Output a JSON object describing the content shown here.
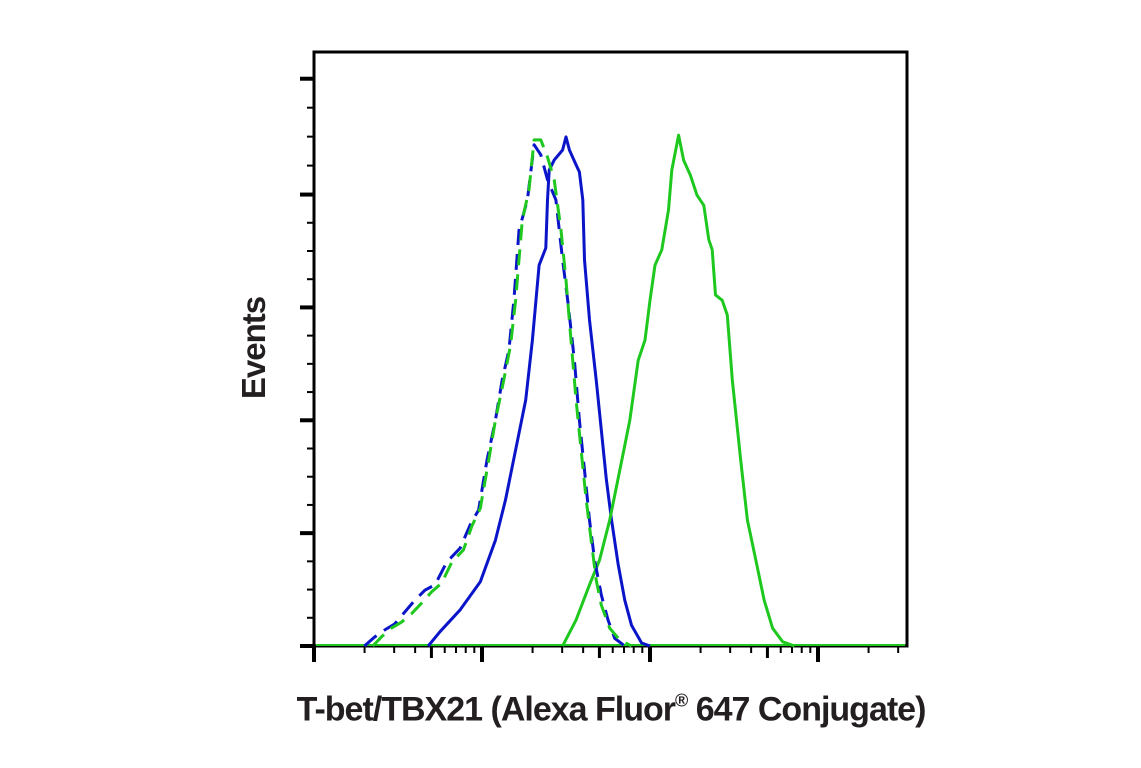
{
  "chart_data": {
    "type": "line",
    "title": "",
    "xlabel": "T-bet/TBX21 (Alexa Fluor® 647 Conjugate)",
    "xlabel_parts": {
      "main": "T-bet/TBX21 (Alexa Fluor",
      "sup": "®",
      "rest": " 647 Conjugate)"
    },
    "ylabel": "Events",
    "x_scale": "log",
    "x_unit": "decades from axis origin",
    "x_range": [
      0,
      3.53
    ],
    "x_major_ticks": [
      0,
      1,
      2,
      3
    ],
    "y_unit": "percent of axis height",
    "ylim": [
      0,
      100
    ],
    "y_major_ticks": [
      0,
      19,
      38,
      57,
      76,
      95.5
    ],
    "y_tick_labels": [],
    "x_tick_labels": [],
    "grid": false,
    "legend": null,
    "series": [
      {
        "name": "blue-solid",
        "color": "#0a14c8",
        "dash": false,
        "points": [
          [
            0.68,
            0
          ],
          [
            0.75,
            2.4
          ],
          [
            0.87,
            6.1
          ],
          [
            0.99,
            10.8
          ],
          [
            1.08,
            17.8
          ],
          [
            1.14,
            24.6
          ],
          [
            1.2,
            33.0
          ],
          [
            1.26,
            41.4
          ],
          [
            1.3,
            51.5
          ],
          [
            1.34,
            64.1
          ],
          [
            1.38,
            67.0
          ],
          [
            1.39,
            75.1
          ],
          [
            1.4,
            80.1
          ],
          [
            1.43,
            81.8
          ],
          [
            1.48,
            83.5
          ],
          [
            1.5,
            85.7
          ],
          [
            1.52,
            83.5
          ],
          [
            1.56,
            81.0
          ],
          [
            1.58,
            79.8
          ],
          [
            1.6,
            75.1
          ],
          [
            1.61,
            65.0
          ],
          [
            1.64,
            54.9
          ],
          [
            1.68,
            44.8
          ],
          [
            1.71,
            36.4
          ],
          [
            1.74,
            28.1
          ],
          [
            1.77,
            21.4
          ],
          [
            1.81,
            13.8
          ],
          [
            1.85,
            7.7
          ],
          [
            1.89,
            3.5
          ],
          [
            1.95,
            0.5
          ],
          [
            2.0,
            0
          ]
        ]
      },
      {
        "name": "green-solid",
        "color": "#1ec81e",
        "dash": false,
        "points": [
          [
            1.48,
            0
          ],
          [
            1.56,
            4.4
          ],
          [
            1.64,
            10.3
          ],
          [
            1.7,
            14.5
          ],
          [
            1.76,
            21.2
          ],
          [
            1.82,
            29.6
          ],
          [
            1.88,
            38.0
          ],
          [
            1.93,
            48.1
          ],
          [
            1.97,
            51.5
          ],
          [
            2.0,
            58.2
          ],
          [
            2.03,
            64.1
          ],
          [
            2.07,
            66.7
          ],
          [
            2.11,
            73.4
          ],
          [
            2.13,
            80.1
          ],
          [
            2.17,
            86.0
          ],
          [
            2.2,
            81.8
          ],
          [
            2.24,
            79.3
          ],
          [
            2.28,
            75.9
          ],
          [
            2.32,
            74.2
          ],
          [
            2.35,
            68.4
          ],
          [
            2.37,
            66.7
          ],
          [
            2.39,
            59.1
          ],
          [
            2.43,
            58.2
          ],
          [
            2.46,
            55.7
          ],
          [
            2.49,
            44.8
          ],
          [
            2.54,
            31.3
          ],
          [
            2.58,
            21.2
          ],
          [
            2.63,
            14.5
          ],
          [
            2.68,
            7.7
          ],
          [
            2.73,
            3.0
          ],
          [
            2.79,
            0.7
          ],
          [
            2.86,
            0
          ]
        ]
      },
      {
        "name": "blue-dashed",
        "color": "#0a14c8",
        "dash": true,
        "points": [
          [
            0.3,
            0
          ],
          [
            0.36,
            1.5
          ],
          [
            0.42,
            2.7
          ],
          [
            0.48,
            3.7
          ],
          [
            0.54,
            5.7
          ],
          [
            0.6,
            7.7
          ],
          [
            0.66,
            9.4
          ],
          [
            0.72,
            10.3
          ],
          [
            0.79,
            14.1
          ],
          [
            0.87,
            16.5
          ],
          [
            0.93,
            20.4
          ],
          [
            0.98,
            22.9
          ],
          [
            1.03,
            31.3
          ],
          [
            1.08,
            38.0
          ],
          [
            1.12,
            44.8
          ],
          [
            1.16,
            49.8
          ],
          [
            1.19,
            58.2
          ],
          [
            1.22,
            70.0
          ],
          [
            1.27,
            75.1
          ],
          [
            1.31,
            84.4
          ],
          [
            1.35,
            82.7
          ],
          [
            1.39,
            78.5
          ],
          [
            1.44,
            75.1
          ],
          [
            1.48,
            65.0
          ],
          [
            1.51,
            58.2
          ],
          [
            1.55,
            48.1
          ],
          [
            1.58,
            38.0
          ],
          [
            1.61,
            29.6
          ],
          [
            1.64,
            21.2
          ],
          [
            1.67,
            14.5
          ],
          [
            1.71,
            8.6
          ],
          [
            1.75,
            4.4
          ],
          [
            1.79,
            1.3
          ],
          [
            1.85,
            0
          ]
        ]
      },
      {
        "name": "green-dashed",
        "color": "#1ec81e",
        "dash": true,
        "points": [
          [
            0.35,
            0
          ],
          [
            0.4,
            1.5
          ],
          [
            0.46,
            3.0
          ],
          [
            0.52,
            4.0
          ],
          [
            0.58,
            5.4
          ],
          [
            0.64,
            7.2
          ],
          [
            0.7,
            9.1
          ],
          [
            0.76,
            10.6
          ],
          [
            0.82,
            14.1
          ],
          [
            0.89,
            16.2
          ],
          [
            0.94,
            20.2
          ],
          [
            0.99,
            23.2
          ],
          [
            1.04,
            31.3
          ],
          [
            1.08,
            38.0
          ],
          [
            1.13,
            44.8
          ],
          [
            1.17,
            50.7
          ],
          [
            1.2,
            58.2
          ],
          [
            1.24,
            71.7
          ],
          [
            1.28,
            76.8
          ],
          [
            1.31,
            85.2
          ],
          [
            1.35,
            85.2
          ],
          [
            1.39,
            82.3
          ],
          [
            1.43,
            78.5
          ],
          [
            1.47,
            70.0
          ],
          [
            1.5,
            61.6
          ],
          [
            1.53,
            51.5
          ],
          [
            1.56,
            41.4
          ],
          [
            1.59,
            33.0
          ],
          [
            1.62,
            24.6
          ],
          [
            1.65,
            17.8
          ],
          [
            1.68,
            11.1
          ],
          [
            1.71,
            6.9
          ],
          [
            1.76,
            3.0
          ],
          [
            1.82,
            1.0
          ],
          [
            1.89,
            0
          ]
        ]
      }
    ]
  }
}
